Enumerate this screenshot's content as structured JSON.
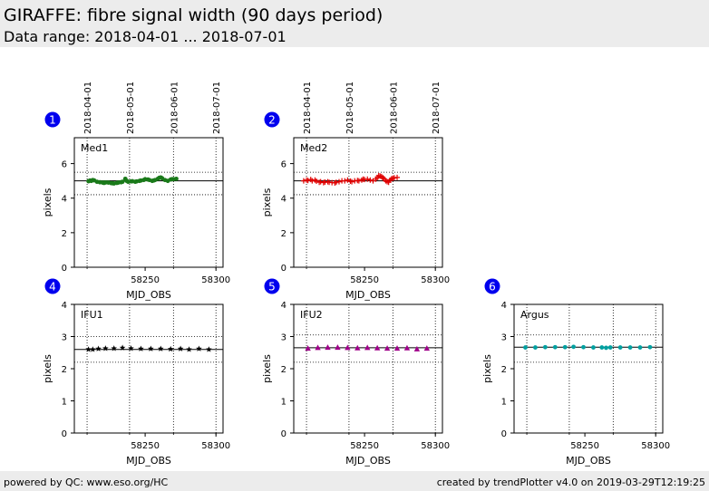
{
  "header": {
    "title": "GIRAFFE: fibre signal width (90 days period)",
    "subtitle": "Data range: 2018-04-01 ... 2018-07-01"
  },
  "footer": {
    "left": "powered by QC: www.eso.org/HC",
    "right": "created by trendPlotter v4.0 on 2019-03-29T12:19:25"
  },
  "chart_data": [
    {
      "type": "scatter",
      "number": "1",
      "name": "Med1",
      "xlabel": "MJD_OBS",
      "ylabel": "pixels",
      "xlim": [
        58200,
        58305
      ],
      "ylim": [
        0,
        7.5
      ],
      "xticks": [
        58250,
        58300
      ],
      "yticks": [
        0,
        2,
        4,
        6
      ],
      "date_ticks": [
        "2018-04-01",
        "2018-05-01",
        "2018-06-01",
        "2018-07-01"
      ],
      "date_tick_mjd": [
        58209,
        58239,
        58270,
        58300
      ],
      "ref_line": 5.0,
      "limit_lines": [
        4.2,
        5.5
      ],
      "color": "#1a7a1a",
      "marker": "circle",
      "points": [
        [
          58210,
          4.98
        ],
        [
          58211,
          5.02
        ],
        [
          58212,
          5.0
        ],
        [
          58213,
          5.05
        ],
        [
          58214,
          5.03
        ],
        [
          58216,
          4.95
        ],
        [
          58218,
          4.92
        ],
        [
          58220,
          4.9
        ],
        [
          58221,
          4.88
        ],
        [
          58222,
          4.91
        ],
        [
          58224,
          4.9
        ],
        [
          58226,
          4.87
        ],
        [
          58227,
          4.86
        ],
        [
          58228,
          4.85
        ],
        [
          58230,
          4.88
        ],
        [
          58231,
          4.9
        ],
        [
          58233,
          4.92
        ],
        [
          58234,
          4.95
        ],
        [
          58236,
          5.12
        ],
        [
          58237,
          5.0
        ],
        [
          58238,
          4.95
        ],
        [
          58240,
          4.97
        ],
        [
          58241,
          4.98
        ],
        [
          58243,
          4.95
        ],
        [
          58244,
          4.97
        ],
        [
          58246,
          5.0
        ],
        [
          58247,
          5.02
        ],
        [
          58249,
          5.05
        ],
        [
          58250,
          5.1
        ],
        [
          58252,
          5.08
        ],
        [
          58253,
          5.05
        ],
        [
          58255,
          5.0
        ],
        [
          58256,
          5.02
        ],
        [
          58257,
          5.05
        ],
        [
          58259,
          5.12
        ],
        [
          58260,
          5.18
        ],
        [
          58261,
          5.2
        ],
        [
          58262,
          5.15
        ],
        [
          58264,
          5.05
        ],
        [
          58266,
          5.0
        ],
        [
          58268,
          5.08
        ],
        [
          58269,
          5.1
        ],
        [
          58270,
          5.1
        ],
        [
          58272,
          5.12
        ]
      ]
    },
    {
      "type": "scatter",
      "number": "2",
      "name": "Med2",
      "xlabel": "MJD_OBS",
      "ylabel": "pixels",
      "xlim": [
        58200,
        58305
      ],
      "ylim": [
        0,
        7.5
      ],
      "xticks": [
        58250,
        58300
      ],
      "yticks": [
        0,
        2,
        4,
        6
      ],
      "date_ticks": [
        "2018-04-01",
        "2018-05-01",
        "2018-06-01",
        "2018-07-01"
      ],
      "date_tick_mjd": [
        58209,
        58239,
        58270,
        58300
      ],
      "ref_line": 5.0,
      "limit_lines": [
        4.2,
        5.5
      ],
      "color": "#e00000",
      "marker": "plus",
      "points": [
        [
          58207,
          5.0
        ],
        [
          58209,
          5.05
        ],
        [
          58210,
          5.02
        ],
        [
          58212,
          5.08
        ],
        [
          58213,
          5.0
        ],
        [
          58215,
          5.05
        ],
        [
          58216,
          4.98
        ],
        [
          58218,
          4.92
        ],
        [
          58219,
          4.95
        ],
        [
          58221,
          4.9
        ],
        [
          58222,
          4.93
        ],
        [
          58224,
          4.95
        ],
        [
          58225,
          4.92
        ],
        [
          58227,
          4.9
        ],
        [
          58229,
          4.88
        ],
        [
          58230,
          4.92
        ],
        [
          58232,
          4.95
        ],
        [
          58234,
          5.0
        ],
        [
          58236,
          5.0
        ],
        [
          58238,
          5.05
        ],
        [
          58240,
          4.98
        ],
        [
          58241,
          4.95
        ],
        [
          58243,
          5.0
        ],
        [
          58245,
          5.02
        ],
        [
          58246,
          5.0
        ],
        [
          58248,
          5.05
        ],
        [
          58249,
          5.1
        ],
        [
          58250,
          5.08
        ],
        [
          58252,
          5.1
        ],
        [
          58254,
          5.05
        ],
        [
          58256,
          5.0
        ],
        [
          58258,
          5.1
        ],
        [
          58259,
          5.2
        ],
        [
          58260,
          5.3
        ],
        [
          58261,
          5.28
        ],
        [
          58262,
          5.25
        ],
        [
          58263,
          5.18
        ],
        [
          58264,
          5.1
        ],
        [
          58265,
          5.0
        ],
        [
          58266,
          4.95
        ],
        [
          58267,
          4.92
        ],
        [
          58268,
          5.05
        ],
        [
          58269,
          5.12
        ],
        [
          58270,
          5.15
        ],
        [
          58271,
          5.18
        ],
        [
          58273,
          5.2
        ]
      ]
    },
    {
      "type": "scatter",
      "number": "4",
      "name": "IFU1",
      "xlabel": "MJD_OBS",
      "ylabel": "pixels",
      "xlim": [
        58200,
        58305
      ],
      "ylim": [
        0,
        4
      ],
      "xticks": [
        58250,
        58300
      ],
      "yticks": [
        0,
        1,
        2,
        3,
        4
      ],
      "ref_line": 2.6,
      "limit_lines": [
        2.2,
        3.0
      ],
      "color": "#000000",
      "marker": "star",
      "points": [
        [
          58210,
          2.6
        ],
        [
          58213,
          2.6
        ],
        [
          58217,
          2.62
        ],
        [
          58222,
          2.63
        ],
        [
          58228,
          2.63
        ],
        [
          58234,
          2.65
        ],
        [
          58240,
          2.63
        ],
        [
          58247,
          2.62
        ],
        [
          58254,
          2.62
        ],
        [
          58261,
          2.62
        ],
        [
          58268,
          2.61
        ],
        [
          58275,
          2.62
        ],
        [
          58281,
          2.6
        ],
        [
          58288,
          2.62
        ],
        [
          58295,
          2.6
        ]
      ]
    },
    {
      "type": "scatter",
      "number": "5",
      "name": "IFU2",
      "xlabel": "MJD_OBS",
      "ylabel": "pixels",
      "xlim": [
        58200,
        58305
      ],
      "ylim": [
        0,
        4
      ],
      "xticks": [
        58250,
        58300
      ],
      "yticks": [
        0,
        1,
        2,
        3,
        4
      ],
      "ref_line": 2.65,
      "limit_lines": [
        2.2,
        3.05
      ],
      "color": "#a0008a",
      "marker": "triangle",
      "points": [
        [
          58210,
          2.63
        ],
        [
          58217,
          2.65
        ],
        [
          58224,
          2.66
        ],
        [
          58231,
          2.66
        ],
        [
          58238,
          2.65
        ],
        [
          58245,
          2.64
        ],
        [
          58252,
          2.65
        ],
        [
          58259,
          2.64
        ],
        [
          58266,
          2.63
        ],
        [
          58273,
          2.63
        ],
        [
          58280,
          2.64
        ],
        [
          58287,
          2.61
        ],
        [
          58294,
          2.63
        ]
      ]
    },
    {
      "type": "scatter",
      "number": "6",
      "name": "Argus",
      "xlabel": "MJD_OBS",
      "ylabel": "pixels",
      "xlim": [
        58200,
        58305
      ],
      "ylim": [
        0,
        4
      ],
      "xticks": [
        58250,
        58300
      ],
      "yticks": [
        0,
        1,
        2,
        3,
        4
      ],
      "ref_line": 2.67,
      "limit_lines": [
        2.2,
        3.05
      ],
      "color": "#00a0a0",
      "marker": "circle",
      "points": [
        [
          58208,
          2.66
        ],
        [
          58215,
          2.66
        ],
        [
          58222,
          2.67
        ],
        [
          58229,
          2.67
        ],
        [
          58236,
          2.67
        ],
        [
          58242,
          2.68
        ],
        [
          58249,
          2.67
        ],
        [
          58256,
          2.66
        ],
        [
          58262,
          2.66
        ],
        [
          58265,
          2.65
        ],
        [
          58268,
          2.66
        ],
        [
          58275,
          2.66
        ],
        [
          58282,
          2.66
        ],
        [
          58289,
          2.66
        ],
        [
          58296,
          2.67
        ]
      ]
    }
  ]
}
